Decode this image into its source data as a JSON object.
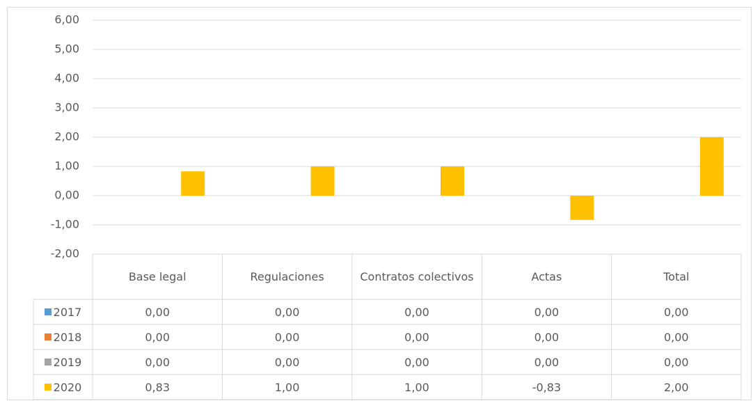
{
  "chart_data": {
    "type": "bar",
    "categories": [
      "Base legal",
      "Regulaciones",
      "Contratos colectivos",
      "Actas",
      "Total"
    ],
    "series": [
      {
        "name": "2017",
        "color": "#5b9bd5",
        "values": [
          0,
          0,
          0,
          0,
          0
        ],
        "value_labels": [
          "0,00",
          "0,00",
          "0,00",
          "0,00",
          "0,00"
        ]
      },
      {
        "name": "2018",
        "color": "#ed7d31",
        "values": [
          0,
          0,
          0,
          0,
          0
        ],
        "value_labels": [
          "0,00",
          "0,00",
          "0,00",
          "0,00",
          "0,00"
        ]
      },
      {
        "name": "2019",
        "color": "#a5a5a5",
        "values": [
          0,
          0,
          0,
          0,
          0
        ],
        "value_labels": [
          "0,00",
          "0,00",
          "0,00",
          "0,00",
          "0,00"
        ]
      },
      {
        "name": "2020",
        "color": "#ffc000",
        "values": [
          0.83,
          1,
          1,
          -0.83,
          2
        ],
        "value_labels": [
          "0,83",
          "1,00",
          "1,00",
          "-0,83",
          "2,00"
        ]
      }
    ],
    "ylim": [
      -2,
      6
    ],
    "yticks": [
      {
        "value": -2,
        "label": "-2,00"
      },
      {
        "value": -1,
        "label": "-1,00"
      },
      {
        "value": 0,
        "label": "0,00"
      },
      {
        "value": 1,
        "label": "1,00"
      },
      {
        "value": 2,
        "label": "2,00"
      },
      {
        "value": 3,
        "label": "3,00"
      },
      {
        "value": 4,
        "label": "4,00"
      },
      {
        "value": 5,
        "label": "5,00"
      },
      {
        "value": 6,
        "label": "6,00"
      }
    ],
    "grid": true
  }
}
